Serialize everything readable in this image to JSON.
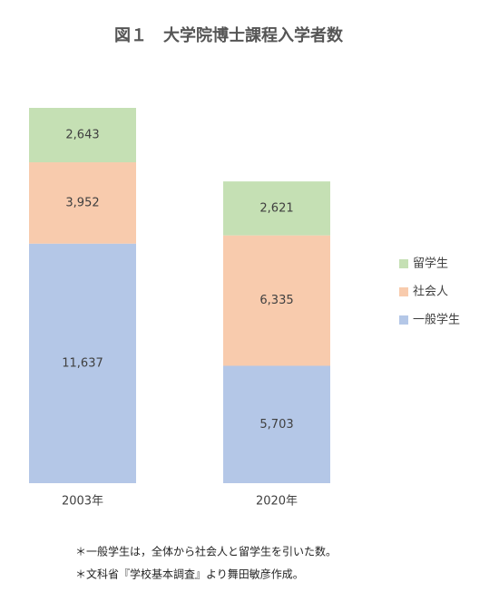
{
  "chart_data": {
    "type": "stacked_bar",
    "title": "図１　大学院博士課程入学者数",
    "categories": [
      "2003年",
      "2020年"
    ],
    "series": [
      {
        "name": "一般学生",
        "color": "#b4c7e7",
        "values": [
          11637,
          5703
        ],
        "value_labels": [
          "11,637",
          "5,703"
        ]
      },
      {
        "name": "社会人",
        "color": "#f8cbad",
        "values": [
          3952,
          6335
        ],
        "value_labels": [
          "3,952",
          "6,335"
        ]
      },
      {
        "name": "留学生",
        "color": "#c5e0b4",
        "values": [
          2643,
          2621
        ],
        "value_labels": [
          "2,643",
          "2,621"
        ]
      }
    ],
    "legend": "right",
    "notes": [
      "＊一般学生は，全体から社会人と留学生を引いた数。",
      "＊文科省『学校基本調査』より舞田敏彦作成。"
    ]
  }
}
